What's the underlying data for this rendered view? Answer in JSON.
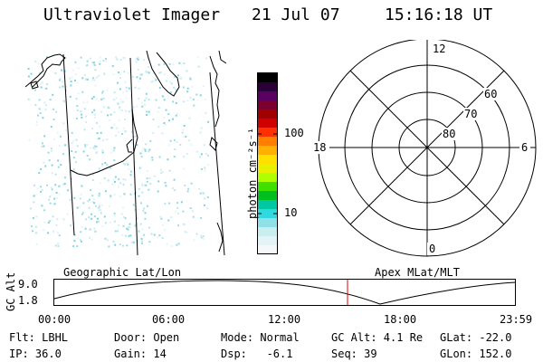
{
  "header": {
    "instrument": "Ultraviolet Imager",
    "date": "21 Jul 07",
    "time": "15:16:18 UT"
  },
  "colorbar": {
    "unit_label": "photon cm⁻²s⁻¹",
    "tick_labels": [
      "100",
      "10"
    ],
    "colors": [
      "#000000",
      "#2a0038",
      "#5a0060",
      "#7a0030",
      "#a00000",
      "#d00000",
      "#ff3000",
      "#ff8000",
      "#ffb000",
      "#ffe000",
      "#e8f000",
      "#b0ff00",
      "#40e000",
      "#00c020",
      "#00c8a0",
      "#30d8e0",
      "#90e0e8",
      "#c8eef0",
      "#e4f4f6",
      "#f4f8fa"
    ]
  },
  "map": {
    "caption": "Geographic Lat/Lon"
  },
  "polar": {
    "caption": "Apex MLat/MLT",
    "mlt_labels": [
      "12",
      "18",
      "6",
      "0"
    ],
    "lat_labels": [
      "60",
      "70",
      "80"
    ]
  },
  "altitude_plot": {
    "ylabel": "GC Alt",
    "ytick_labels": [
      "9.0",
      "1.8"
    ],
    "xtick_labels": [
      "00:00",
      "06:00",
      "12:00",
      "18:00",
      "23:59"
    ]
  },
  "footer": {
    "row1": [
      "Flt: LBHL",
      "Door: Open",
      "Mode: Normal",
      "GC Alt: 4.1 Re",
      "GLat: -22.0"
    ],
    "row2": [
      "IP: 36.0",
      "Gain: 14",
      "Dsp:   -6.1",
      "Seq: 39",
      "GLon: 152.0"
    ]
  }
}
